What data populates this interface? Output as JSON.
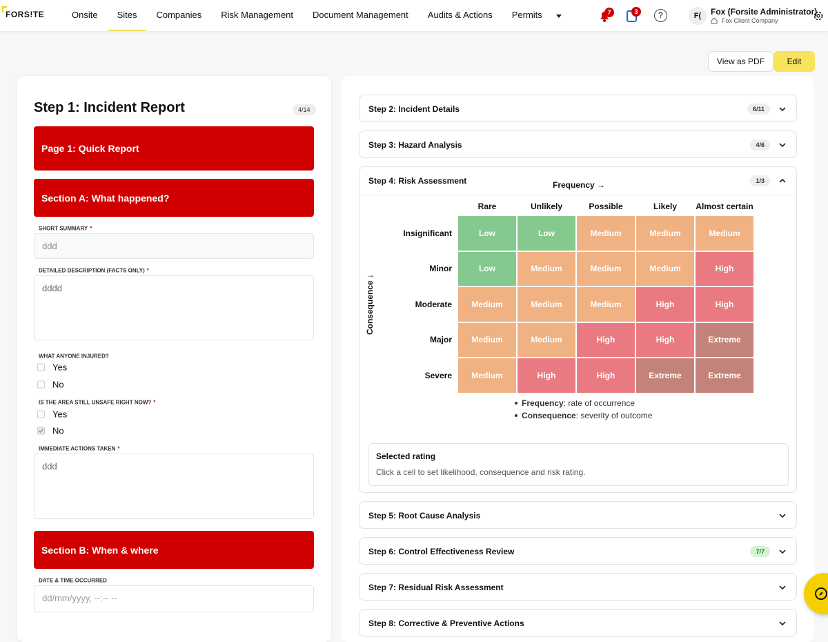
{
  "nav": {
    "logo": "FORS!TE",
    "items": [
      "Onsite",
      "Sites",
      "Companies",
      "Risk Management",
      "Document Management",
      "Audits & Actions",
      "Permits"
    ],
    "active": 1,
    "notifications": "7",
    "tasks": "3",
    "help": "?",
    "avatar": "F(",
    "user_name": "Fox (Forsite Administrator)",
    "company": "Fox Client Company"
  },
  "toolbar": {
    "pdf": "View as PDF",
    "edit": "Edit"
  },
  "form": {
    "title": "Step 1: Incident Report",
    "progress": "4/14",
    "page": "Page 1: Quick Report",
    "section_a": "Section A: What happened?",
    "summary": {
      "label": "SHORT SUMMARY",
      "required": "*",
      "value": "ddd"
    },
    "description": {
      "label": "DETAILED DESCRIPTION (FACTS ONLY)",
      "required": "*",
      "value": "dddd"
    },
    "injured": {
      "label": "WHAT ANYONE INJURED?",
      "options": [
        {
          "label": "Yes",
          "checked": false
        },
        {
          "label": "No",
          "checked": false
        }
      ]
    },
    "unsafe": {
      "label": "IS THE AREA STILL UNSAFE RIGHT NOW?",
      "required": "*",
      "options": [
        {
          "label": "Yes",
          "checked": false
        },
        {
          "label": "No",
          "checked": true
        }
      ]
    },
    "actions": {
      "label": "IMMEDIATE ACTIONS TAKEN",
      "required": "*",
      "value": "ddd"
    },
    "section_b": "Section B: When & where",
    "occurred": {
      "label": "DATE & TIME OCCURRED",
      "placeholder": "dd/mm/yyyy, --:-- --"
    }
  },
  "steps": [
    {
      "title": "Step 2: Incident Details",
      "progress": "6/11"
    },
    {
      "title": "Step 3: Hazard Analysis",
      "progress": "4/6"
    },
    {
      "title": "Step 4: Risk Assessment",
      "progress": "1/3",
      "expanded": true
    },
    {
      "title": "Step 5: Root Cause Analysis"
    },
    {
      "title": "Step 6: Control Effectiveness Review",
      "progress": "7/7",
      "complete": true
    },
    {
      "title": "Step 7: Residual Risk Assessment"
    },
    {
      "title": "Step 8: Corrective & Preventive Actions"
    }
  ],
  "matrix": {
    "x_label": "Frequency →",
    "y_label": "Consequence ↓",
    "columns": [
      "Rare",
      "Unlikely",
      "Possible",
      "Likely",
      "Almost certain"
    ],
    "rows": [
      {
        "label": "Insignificant",
        "cells": [
          "Low",
          "Low",
          "Medium",
          "Medium",
          "Medium"
        ]
      },
      {
        "label": "Minor",
        "cells": [
          "Low",
          "Medium",
          "Medium",
          "Medium",
          "High"
        ]
      },
      {
        "label": "Moderate",
        "cells": [
          "Medium",
          "Medium",
          "Medium",
          "High",
          "High"
        ]
      },
      {
        "label": "Major",
        "cells": [
          "Medium",
          "Medium",
          "High",
          "High",
          "Extreme"
        ]
      },
      {
        "label": "Severe",
        "cells": [
          "Medium",
          "High",
          "High",
          "Extreme",
          "Extreme"
        ]
      }
    ],
    "colors": {
      "Low": "#86c98e",
      "Medium": "#f0b183",
      "High": "#e97a82",
      "Extreme": "#c4837a"
    },
    "legend": [
      {
        "term": "Frequency",
        "text": ": rate of occurrence"
      },
      {
        "term": "Consequence",
        "text": ": severity of outcome"
      }
    ],
    "selected": {
      "title": "Selected rating",
      "hint": "Click a cell to set likelihood, consequence and risk rating."
    }
  }
}
